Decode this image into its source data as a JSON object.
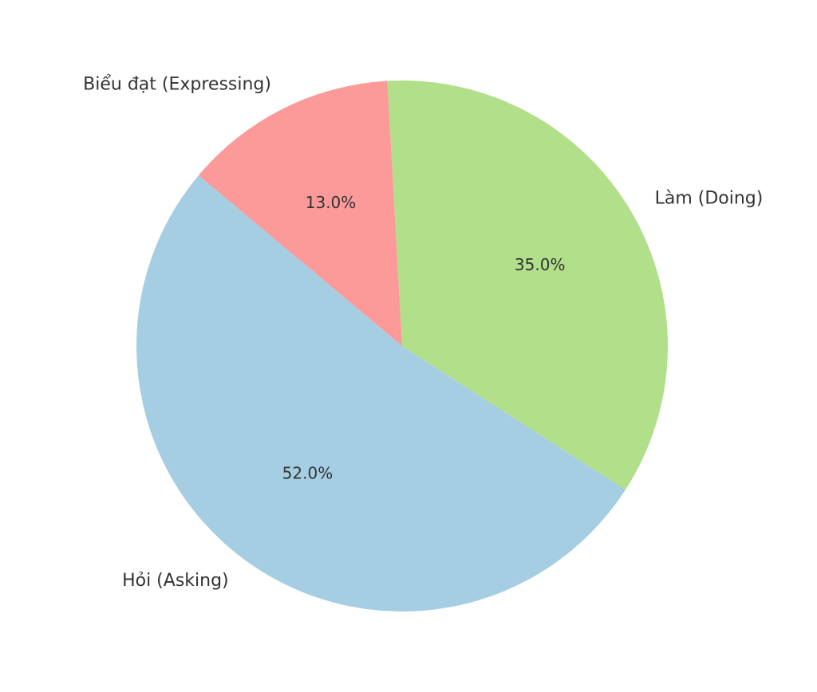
{
  "chart_data": {
    "type": "pie",
    "categories": [
      "Hỏi (Asking)",
      "Làm (Doing)",
      "Biểu đạt (Expressing)"
    ],
    "values": [
      52,
      35,
      13
    ],
    "value_labels": [
      "52.0%",
      "35.0%",
      "13.0%"
    ],
    "colors": [
      "#a6cee3",
      "#b2df8a",
      "#fb9a99"
    ]
  }
}
